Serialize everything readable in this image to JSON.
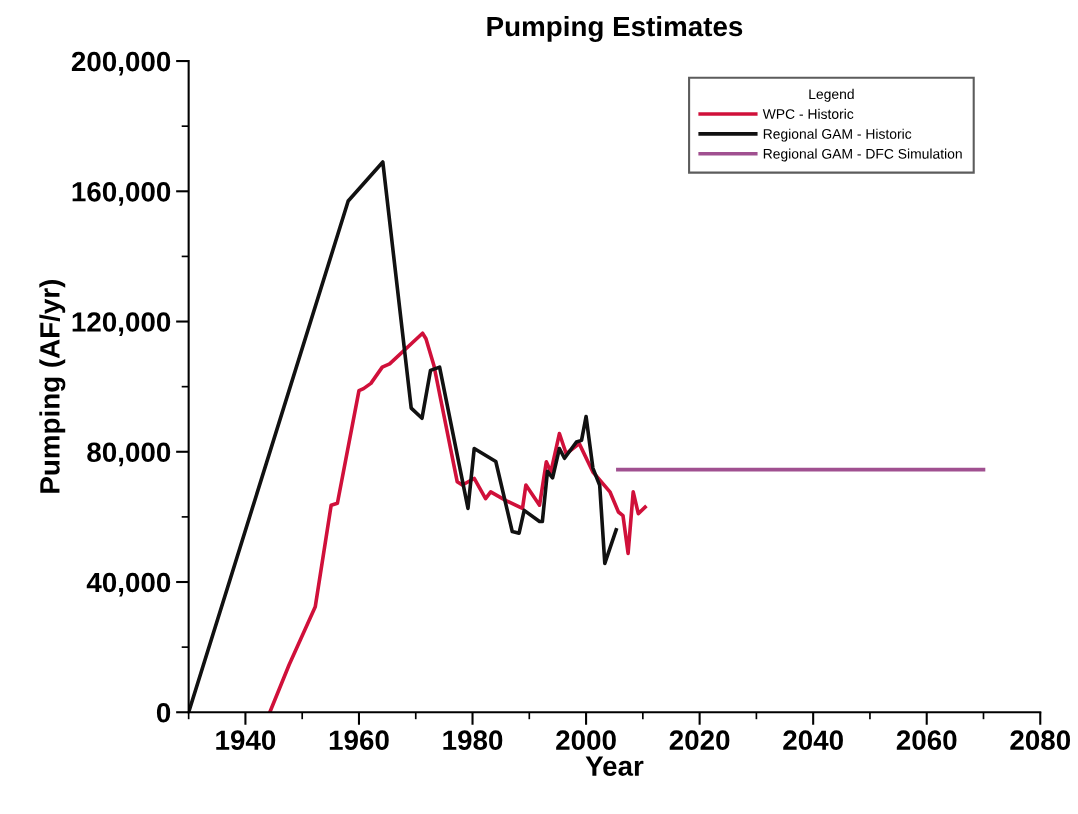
{
  "chart_data": {
    "type": "line",
    "title": "Pumping Estimates",
    "xlabel": "Year",
    "ylabel": "Pumping (AF/yr)",
    "legend_title": "Legend",
    "legend": "top right",
    "grid": false,
    "marker": "none",
    "line_style": "solid",
    "xlim": [
      1930,
      2080
    ],
    "ylim": [
      0,
      200000
    ],
    "xticks": [
      {
        "value": 1930,
        "label": null
      },
      1940,
      {
        "value": 1950,
        "label": null
      },
      1960,
      {
        "value": 1970,
        "label": null
      },
      1980,
      {
        "value": 1990,
        "label": null
      },
      2000,
      {
        "value": 2010,
        "label": null
      },
      2020,
      {
        "value": 2030,
        "label": null
      },
      2040,
      {
        "value": 2050,
        "label": null
      },
      2060,
      {
        "value": 2070,
        "label": null
      },
      2080
    ],
    "yticks": [
      {
        "value": 0,
        "label": "0"
      },
      {
        "value": 20000,
        "label": null
      },
      {
        "value": 40000,
        "label": "40,000"
      },
      {
        "value": 60000,
        "label": null
      },
      {
        "value": 80000,
        "label": "80,000"
      },
      {
        "value": 100000,
        "label": null
      },
      {
        "value": 120000,
        "label": "120,000"
      },
      {
        "value": 140000,
        "label": null
      },
      {
        "value": 160000,
        "label": "160,000"
      },
      {
        "value": 180000,
        "label": null
      },
      {
        "value": 200000,
        "label": "200,000"
      }
    ],
    "series": [
      {
        "name": "WPC - Historic",
        "color": "#d0103a",
        "x": [
          1944.3,
          1947.7,
          1952.3,
          1955.1,
          1956.2,
          1960,
          1960.8,
          1962.1,
          1964.1,
          1965.4,
          1971.2,
          1971.8,
          1973.2,
          1977.3,
          1978.2,
          1980.3,
          1982.3,
          1983.2,
          1985.9,
          1988.8,
          1989.4,
          1991.8,
          1993,
          1993.8,
          1995.3,
          1996.5,
          1998.8,
          2001.2,
          2004.2,
          2005.7,
          2006.5,
          2007.4,
          2008.3,
          2009.2,
          2010.4
        ],
        "values": [
          0,
          14600,
          32400,
          63600,
          64200,
          98800,
          99400,
          101000,
          106000,
          107000,
          116400,
          114700,
          106500,
          70800,
          69800,
          71800,
          65600,
          67700,
          65000,
          62600,
          69800,
          63600,
          76900,
          73800,
          85600,
          79400,
          82500,
          73800,
          67700,
          61500,
          60400,
          48800,
          67700,
          61000,
          63000
        ]
      },
      {
        "name": "Regional GAM - Historic",
        "color": "#111111",
        "x": [
          1930,
          1958.1,
          1964.2,
          1969.2,
          1971.1,
          1972.6,
          1974.2,
          1979.2,
          1980.3,
          1984.1,
          1987,
          1988.2,
          1989.1,
          1991.8,
          1992.3,
          1993.2,
          1994.1,
          1995.3,
          1996.2,
          1998.3,
          1999.2,
          2000,
          2001.2,
          2002.4,
          2003.3,
          2005.3
        ],
        "values": [
          0,
          157000,
          169000,
          93400,
          90300,
          105000,
          106000,
          62600,
          81000,
          77000,
          55500,
          55000,
          62000,
          58600,
          58600,
          74000,
          72000,
          81000,
          78000,
          83000,
          83500,
          90800,
          75000,
          69700,
          45700,
          56000
        ]
      },
      {
        "name": "Regional GAM - DFC Simulation",
        "color": "#a05090",
        "x": [
          2005.6,
          2070
        ],
        "values": [
          74500,
          74500
        ]
      }
    ]
  }
}
